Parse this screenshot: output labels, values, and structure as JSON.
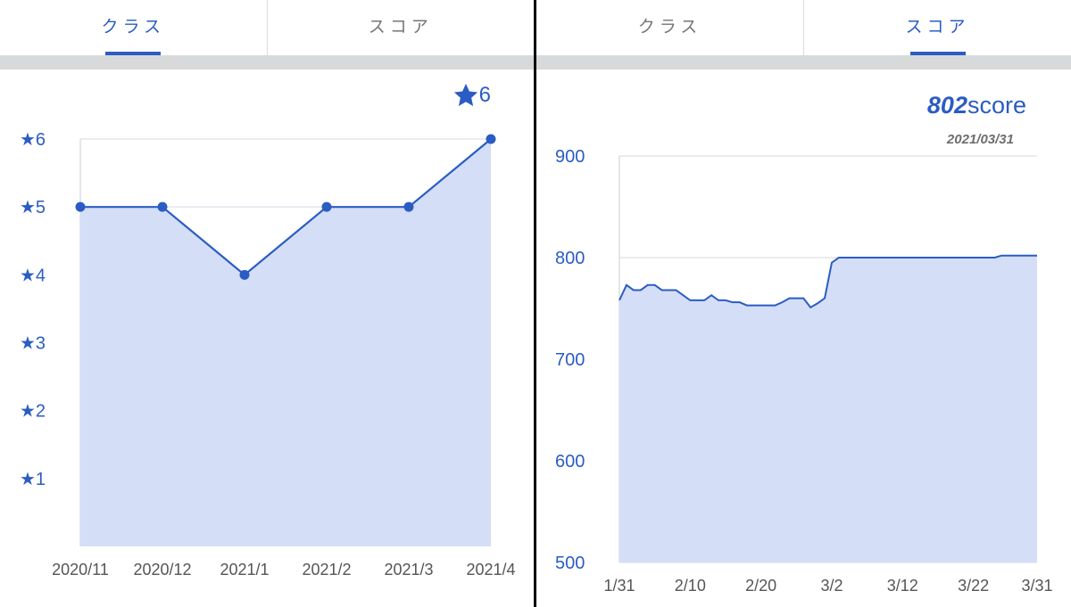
{
  "left_panel": {
    "tabs": [
      {
        "label": "クラス",
        "active": true
      },
      {
        "label": "スコア",
        "active": false
      }
    ],
    "current_value": "6",
    "chart_data": {
      "type": "area",
      "categories": [
        "2020/11",
        "2020/12",
        "2021/1",
        "2021/2",
        "2021/3",
        "2021/4"
      ],
      "values": [
        5,
        5,
        4,
        5,
        5,
        6
      ],
      "yticks": [
        1,
        2,
        3,
        4,
        5,
        6
      ],
      "ytick_prefix": "★",
      "ylim": [
        0,
        6
      ],
      "markers": true,
      "grid": true,
      "line_color": "#2b5cc4",
      "fill_color": "#d4def6"
    }
  },
  "right_panel": {
    "tabs": [
      {
        "label": "クラス",
        "active": false
      },
      {
        "label": "スコア",
        "active": true
      }
    ],
    "current_value": "802",
    "current_unit": "score",
    "current_date": "2021/03/31",
    "chart_data": {
      "type": "area",
      "x_tick_labels": [
        "1/31",
        "2/10",
        "2/20",
        "3/2",
        "3/12",
        "3/22",
        "3/31"
      ],
      "x_tick_days": [
        0,
        10,
        20,
        30,
        40,
        50,
        59
      ],
      "y_tick_labels": [
        "500",
        "600",
        "700",
        "800",
        "900"
      ],
      "ylim": [
        500,
        900
      ],
      "grid": true,
      "line_color": "#2b5cc4",
      "fill_color": "#d4def6",
      "series": [
        {
          "x": [
            "1/31",
            "2/1",
            "2/2",
            "2/3",
            "2/4",
            "2/5",
            "2/6",
            "2/7",
            "2/8",
            "2/9",
            "2/10",
            "2/11",
            "2/12",
            "2/13",
            "2/14",
            "2/15",
            "2/16",
            "2/17",
            "2/18",
            "2/19",
            "2/20",
            "2/21",
            "2/22",
            "2/23",
            "2/24",
            "2/25",
            "2/26",
            "2/27",
            "2/28",
            "3/1",
            "3/2",
            "3/3",
            "3/4",
            "3/5",
            "3/6",
            "3/7",
            "3/8",
            "3/9",
            "3/10",
            "3/11",
            "3/12",
            "3/13",
            "3/14",
            "3/15",
            "3/16",
            "3/17",
            "3/18",
            "3/19",
            "3/20",
            "3/21",
            "3/22",
            "3/23",
            "3/24",
            "3/25",
            "3/26",
            "3/27",
            "3/28",
            "3/29",
            "3/30",
            "3/31"
          ],
          "y": [
            758,
            773,
            768,
            768,
            773,
            773,
            768,
            768,
            768,
            763,
            758,
            758,
            758,
            763,
            758,
            758,
            756,
            756,
            753,
            753,
            753,
            753,
            753,
            756,
            760,
            760,
            760,
            751,
            755,
            760,
            795,
            800,
            800,
            800,
            800,
            800,
            800,
            800,
            800,
            800,
            800,
            800,
            800,
            800,
            800,
            800,
            800,
            800,
            800,
            800,
            800,
            800,
            800,
            800,
            802,
            802,
            802,
            802,
            802,
            802
          ]
        }
      ]
    }
  }
}
